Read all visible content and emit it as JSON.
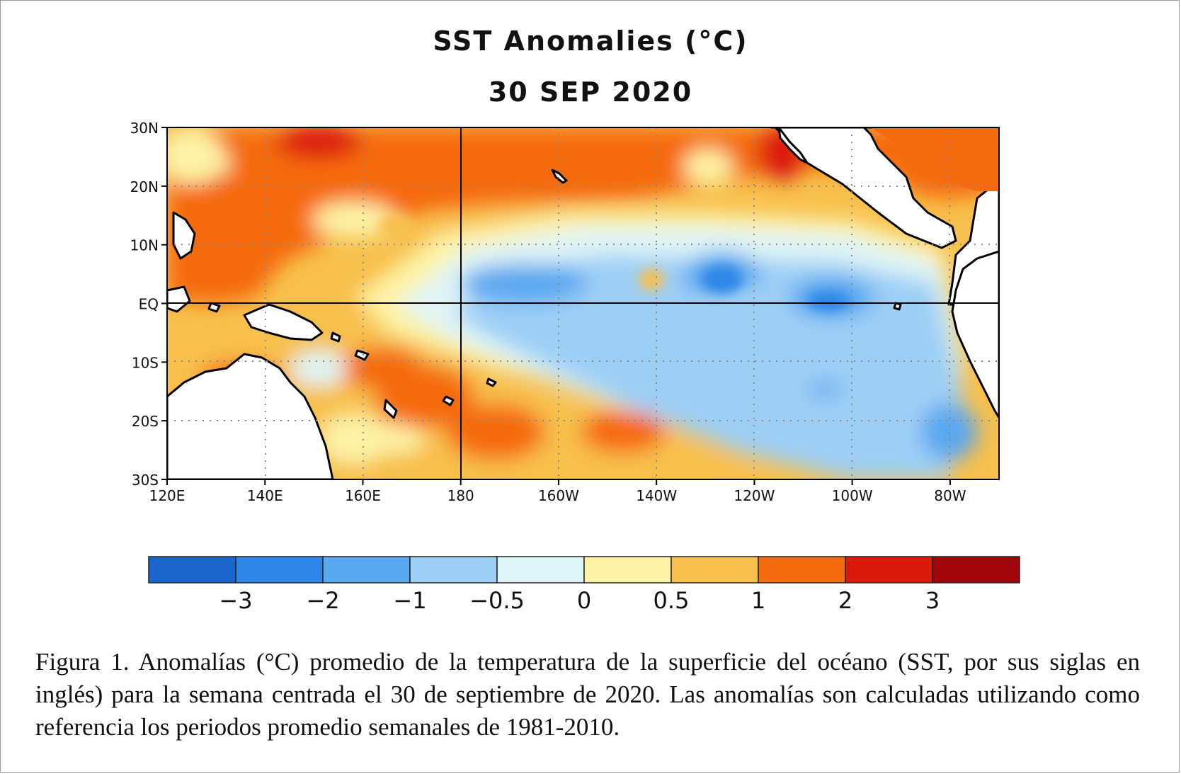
{
  "figure": {
    "title": "SST Anomalies (°C)",
    "date": "30 SEP 2020"
  },
  "map": {
    "lon_range": [
      120,
      290
    ],
    "lat_range": [
      -30,
      30
    ],
    "lat_ticks": [
      {
        "value": 30,
        "label": "30N"
      },
      {
        "value": 20,
        "label": "20N"
      },
      {
        "value": 10,
        "label": "10N"
      },
      {
        "value": 0,
        "label": "EQ"
      },
      {
        "value": -10,
        "label": "10S"
      },
      {
        "value": -20,
        "label": "20S"
      },
      {
        "value": -30,
        "label": "30S"
      }
    ],
    "lon_ticks": [
      {
        "value": 120,
        "label": "120E"
      },
      {
        "value": 140,
        "label": "140E"
      },
      {
        "value": 160,
        "label": "160E"
      },
      {
        "value": 180,
        "label": "180"
      },
      {
        "value": 200,
        "label": "160W"
      },
      {
        "value": 220,
        "label": "140W"
      },
      {
        "value": 240,
        "label": "120W"
      },
      {
        "value": 260,
        "label": "100W"
      },
      {
        "value": 280,
        "label": "80W"
      }
    ],
    "gridlines": "dotted",
    "solid_reference_lines": {
      "lon": 180,
      "lat": 0
    }
  },
  "colorbar": {
    "colors": [
      "#1a66cc",
      "#2e86e6",
      "#5aa8f0",
      "#9dcff5",
      "#dff4f6",
      "#fdf3a6",
      "#f7c04c",
      "#f56b10",
      "#dc1a0c",
      "#a0060a"
    ],
    "labels": [
      "−3",
      "−2",
      "−1",
      "−0.5",
      "0",
      "0.5",
      "1",
      "2",
      "3"
    ],
    "thresholds": [
      -3,
      -2,
      -1,
      -0.5,
      0,
      0.5,
      1,
      2,
      3
    ]
  },
  "caption": "Figura 1. Anomalías (°C) promedio de la temperatura de la superficie del océano (SST, por sus siglas en inglés) para la semana centrada el 30 de septiembre de 2020. Las anomalías son calculadas utilizando como referencia los periodos promedio semanales de 1981-2010."
}
